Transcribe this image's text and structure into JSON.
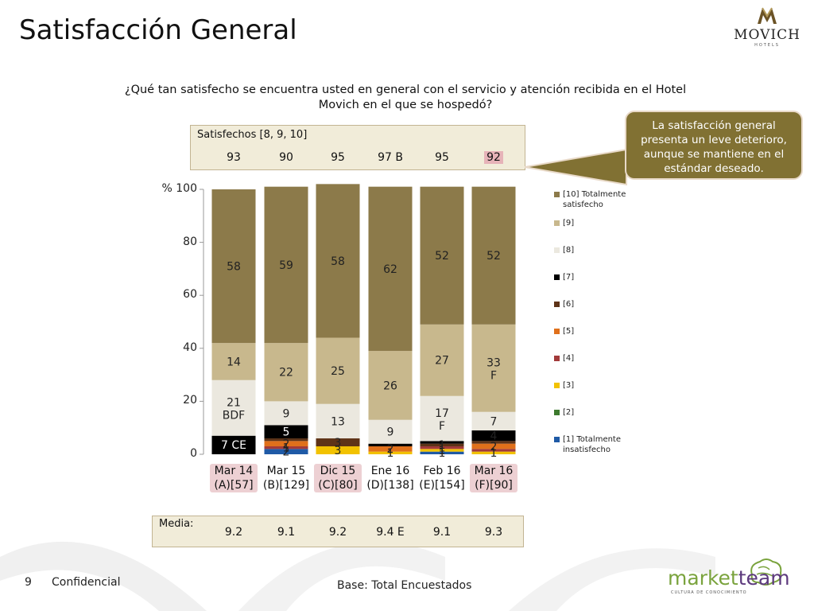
{
  "title": "Satisfacción General",
  "logo": {
    "name": "MOVICH",
    "sub": "HOTELS"
  },
  "question": "¿Qué tan satisfecho se encuentra usted en general con el servicio y atención recibida en el Hotel Movich en el que se hospedó?",
  "satisfied_panel": {
    "label": "Satisfechos [8, 9, 10]",
    "values": [
      "93",
      "90",
      "95",
      "97 B",
      "95",
      "92"
    ]
  },
  "callout": "La satisfacción general presenta un leve deterioro, aunque se mantiene en el estándar deseado.",
  "media_panel": {
    "label": "Media:",
    "values": [
      "9.2",
      "9.1",
      "9.2",
      "9.4 E",
      "9.1",
      "9.3"
    ]
  },
  "footer": {
    "page": "9",
    "confidential": "Confidencial",
    "base": "Base: Total Encuestados"
  },
  "brand_logo": {
    "part1": "market",
    "part2": "team",
    "tagline": "CULTURA DE CONOCIMIENTO"
  },
  "chart_data": {
    "type": "bar",
    "stacked": true,
    "ylabel": "%",
    "ylim": [
      0,
      100
    ],
    "yticks": [
      "0",
      "20",
      "40",
      "60",
      "80",
      "% 100"
    ],
    "categories": [
      [
        "Mar 14",
        "(A)[57]"
      ],
      [
        "Mar 15",
        "(B)[129]"
      ],
      [
        "Dic 15",
        "(C)[80]"
      ],
      [
        "Ene 16",
        "(D)[138]"
      ],
      [
        "Feb 16",
        "(E)[154]"
      ],
      [
        "Mar 16",
        "(F)[90]"
      ]
    ],
    "highlighted_categories": [
      0,
      2,
      5
    ],
    "series": [
      {
        "name": "[1] Totalmente insatisfecho",
        "color": "#1f5aa6",
        "values": [
          0,
          2,
          0,
          0,
          1,
          0
        ],
        "labels": [
          "",
          "2",
          "",
          "",
          "1",
          ""
        ]
      },
      {
        "name": "[2]",
        "color": "#3d7a2e",
        "values": [
          0,
          0,
          0,
          0,
          0,
          0
        ],
        "labels": [
          "",
          "",
          "",
          "",
          "",
          ""
        ]
      },
      {
        "name": "[3]",
        "color": "#f2c200",
        "values": [
          0,
          0,
          3,
          1,
          1,
          1
        ],
        "labels": [
          "",
          "",
          "3",
          "1",
          "1",
          "1"
        ]
      },
      {
        "name": "[4]",
        "color": "#a23a3a",
        "values": [
          0,
          1,
          0,
          0,
          1,
          1
        ],
        "labels": [
          "",
          "1",
          "",
          "",
          "1",
          ""
        ]
      },
      {
        "name": "[5]",
        "color": "#e0701b",
        "values": [
          0,
          2,
          0,
          2,
          0,
          2
        ],
        "labels": [
          "",
          "2",
          "",
          "2",
          "",
          "2"
        ]
      },
      {
        "name": "[6]",
        "color": "#5e3317",
        "values": [
          0,
          1,
          3,
          0,
          1,
          1
        ],
        "labels": [
          "",
          "",
          "3",
          "",
          "1",
          ""
        ]
      },
      {
        "name": "[7]",
        "color": "#000000",
        "values": [
          7,
          5,
          0,
          1,
          1,
          4
        ],
        "labels": [
          "7 CE",
          "5",
          "",
          "",
          "",
          "4"
        ]
      },
      {
        "name": "[8]",
        "color": "#ebe8df",
        "values": [
          21,
          9,
          13,
          9,
          17,
          7
        ],
        "labels": [
          "21\nBDF",
          "9",
          "13",
          "9",
          "17\nF",
          "7"
        ]
      },
      {
        "name": "[9]",
        "color": "#c8b88d",
        "values": [
          14,
          22,
          25,
          26,
          27,
          33
        ],
        "labels": [
          "14",
          "22",
          "25",
          "26",
          "27",
          "33\nF"
        ]
      },
      {
        "name": "[10] Totalmente satisfecho",
        "color": "#8c7a4a",
        "values": [
          58,
          59,
          58,
          62,
          52,
          52
        ],
        "labels": [
          "58",
          "59",
          "58",
          "62",
          "52",
          "52"
        ]
      }
    ]
  }
}
